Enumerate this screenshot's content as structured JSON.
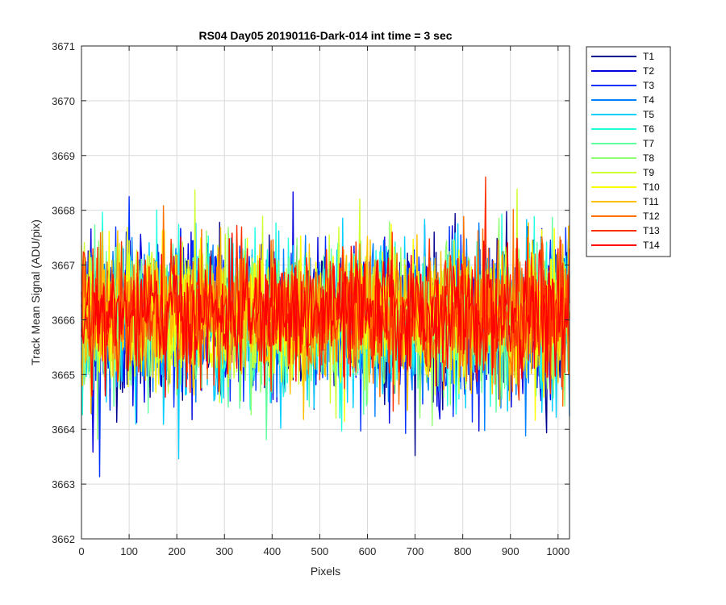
{
  "chart_data": {
    "type": "line",
    "title": "RS04 Day05 20190116-Dark-014 int time = 3 sec",
    "xlabel": "Pixels",
    "ylabel": "Track Mean Signal (ADU/pix)",
    "xlim": [
      0,
      1024
    ],
    "ylim": [
      3662,
      3671
    ],
    "xticks": [
      0,
      100,
      200,
      300,
      400,
      500,
      600,
      700,
      800,
      900,
      1000
    ],
    "yticks": [
      3662,
      3663,
      3664,
      3665,
      3666,
      3667,
      3668,
      3669,
      3670,
      3671
    ],
    "grid": true,
    "legend_position": "outside-top-right",
    "series": [
      {
        "name": "T1",
        "color": "#00008F",
        "mean": 3666.0,
        "spread": 0.95
      },
      {
        "name": "T2",
        "color": "#0000DF",
        "mean": 3666.0,
        "spread": 0.95
      },
      {
        "name": "T3",
        "color": "#0030FF",
        "mean": 3666.0,
        "spread": 0.95
      },
      {
        "name": "T4",
        "color": "#0080FF",
        "mean": 3666.0,
        "spread": 0.9
      },
      {
        "name": "T5",
        "color": "#00CFFF",
        "mean": 3666.0,
        "spread": 0.9
      },
      {
        "name": "T6",
        "color": "#20FFDF",
        "mean": 3666.0,
        "spread": 0.9
      },
      {
        "name": "T7",
        "color": "#60FFA0",
        "mean": 3666.0,
        "spread": 0.88
      },
      {
        "name": "T8",
        "color": "#90FF70",
        "mean": 3666.05,
        "spread": 0.88
      },
      {
        "name": "T9",
        "color": "#CFFF30",
        "mean": 3666.1,
        "spread": 0.85
      },
      {
        "name": "T10",
        "color": "#FFFF00",
        "mean": 3666.1,
        "spread": 0.85
      },
      {
        "name": "T11",
        "color": "#FFBF00",
        "mean": 3666.1,
        "spread": 0.82
      },
      {
        "name": "T12",
        "color": "#FF7000",
        "mean": 3666.1,
        "spread": 0.8
      },
      {
        "name": "T13",
        "color": "#FF3000",
        "mean": 3666.1,
        "spread": 0.78
      },
      {
        "name": "T14",
        "color": "#FF0000",
        "mean": 3666.1,
        "spread": 0.72
      }
    ]
  }
}
